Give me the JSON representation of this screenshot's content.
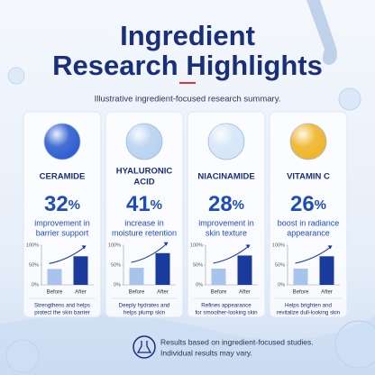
{
  "header": {
    "title": [
      "Ingredient",
      "Research Highlights"
    ],
    "subtitle": "Illustrative ingredient-focused research summary."
  },
  "cards": [
    {
      "name": [
        "CERAMIDE"
      ],
      "stat": "32",
      "unit": "%",
      "description": [
        "improvement in",
        "barrier support"
      ],
      "note": [
        "Strengthens and helps",
        "protect the skin barrier"
      ],
      "icon_color": "#2f5fd0",
      "chart": {
        "type": "bar",
        "categories": [
          "Before",
          "After"
        ],
        "values": [
          40,
          72
        ],
        "colors": [
          "#a9c4ec",
          "#1a3a9e"
        ],
        "ylim": [
          0,
          100
        ],
        "yticks": [
          {
            "value": 0,
            "label": "0%"
          },
          {
            "value": 50,
            "label": "50%"
          },
          {
            "value": 100,
            "label": "100%"
          }
        ]
      }
    },
    {
      "name": [
        "HYALURONIC",
        "ACID"
      ],
      "stat": "41",
      "unit": "%",
      "description": [
        "increase in",
        "moisture retention"
      ],
      "note": [
        "Deeply hydrates and",
        "helps plump skin"
      ],
      "icon_color": "#b9d3f0",
      "chart": {
        "type": "bar",
        "categories": [
          "Before",
          "After"
        ],
        "values": [
          43,
          80
        ],
        "colors": [
          "#a9c4ec",
          "#1a3a9e"
        ],
        "ylim": [
          0,
          100
        ],
        "yticks": [
          {
            "value": 0,
            "label": "0%"
          },
          {
            "value": 50,
            "label": "50%"
          },
          {
            "value": 100,
            "label": "100%"
          }
        ]
      }
    },
    {
      "name": [
        "NIACINAMIDE"
      ],
      "stat": "28",
      "unit": "%",
      "description": [
        "improvement in",
        "skin texture"
      ],
      "note": [
        "Refines appearance",
        "for smoother-looking skin"
      ],
      "icon_color": "#d6e6f7",
      "chart": {
        "type": "bar",
        "categories": [
          "Before",
          "After"
        ],
        "values": [
          41,
          74
        ],
        "colors": [
          "#a9c4ec",
          "#1a3a9e"
        ],
        "ylim": [
          0,
          100
        ],
        "yticks": [
          {
            "value": 0,
            "label": "0%"
          },
          {
            "value": 50,
            "label": "50%"
          },
          {
            "value": 100,
            "label": "100%"
          }
        ]
      }
    },
    {
      "name": [
        "VITAMIN C"
      ],
      "stat": "26",
      "unit": "%",
      "description": [
        "boost in radiance",
        "appearance"
      ],
      "note": [
        "Helps brighten and",
        "revitalize dull-looking skin"
      ],
      "icon_color": "#f0b52a",
      "chart": {
        "type": "bar",
        "categories": [
          "Before",
          "After"
        ],
        "values": [
          41,
          72
        ],
        "colors": [
          "#a9c4ec",
          "#1a3a9e"
        ],
        "ylim": [
          0,
          100
        ],
        "yticks": [
          {
            "value": 0,
            "label": "0%"
          },
          {
            "value": 50,
            "label": "50%"
          },
          {
            "value": 100,
            "label": "100%"
          }
        ]
      }
    }
  ],
  "footer": {
    "text": [
      "Results based on ingredient-focused studies.",
      "Individual results may vary."
    ]
  }
}
